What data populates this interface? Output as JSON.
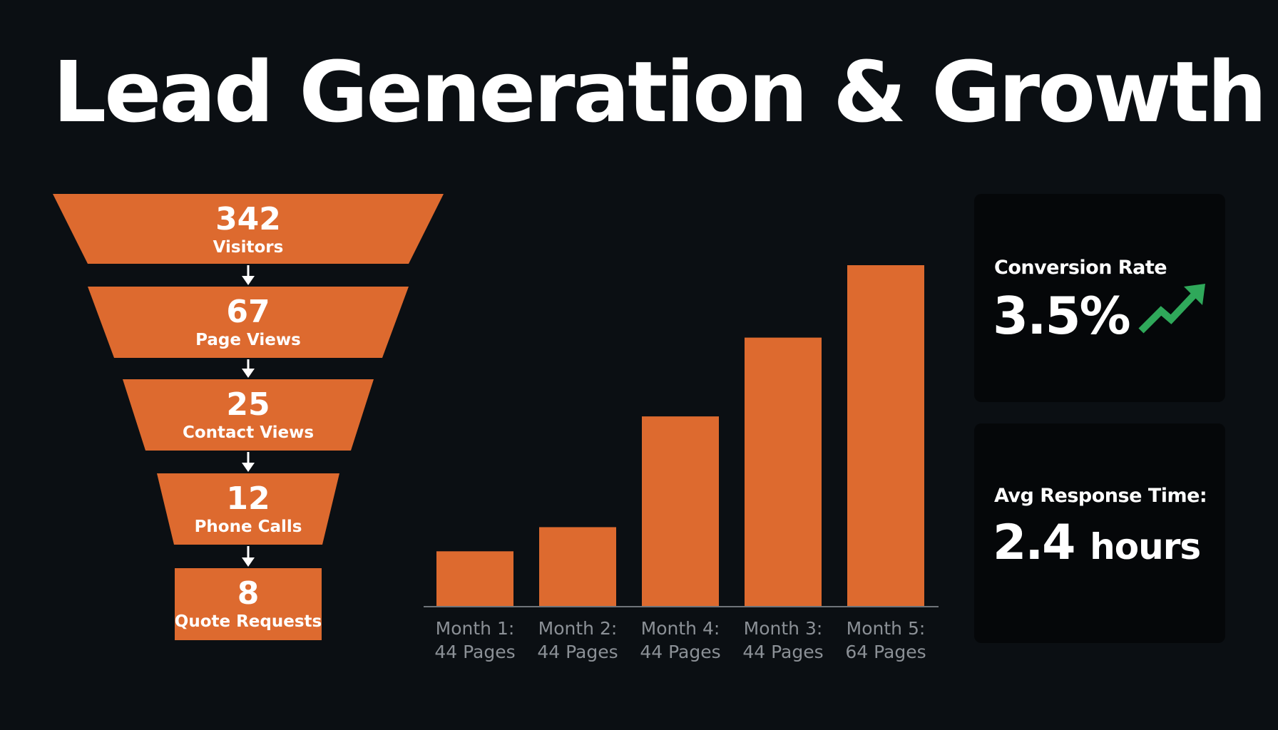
{
  "title": "Lead Generation & Growth",
  "colors": {
    "background": "#0b0f13",
    "accent": "#dd6a2f",
    "card": "#050709",
    "trend": "#2fa85a",
    "axis_text": "#8b9096"
  },
  "funnel": [
    {
      "value": "342",
      "label": "Visitors"
    },
    {
      "value": "67",
      "label": "Page Views"
    },
    {
      "value": "25",
      "label": "Contact Views"
    },
    {
      "value": "12",
      "label": "Phone Calls"
    },
    {
      "value": "8",
      "label": "Quote Requests"
    }
  ],
  "chart_data": {
    "type": "bar",
    "categories": [
      "Month 1:\n44 Pages",
      "Month 2:\n44 Pages",
      "Month 4:\n44 Pages",
      "Month 3:\n44 Pages",
      "Month 5:\n64 Pages"
    ],
    "values": [
      77,
      111,
      267,
      378,
      480
    ],
    "title": "",
    "xlabel": "",
    "ylabel": "",
    "ylim": [
      0,
      480
    ],
    "grid": false,
    "legend": "none"
  },
  "stats": {
    "conversion": {
      "label": "Conversion Rate",
      "value": "3.5%",
      "icon": "trend-up-icon"
    },
    "response": {
      "label": "Avg Response Time:",
      "value": "2.4",
      "unit": "hours"
    }
  }
}
